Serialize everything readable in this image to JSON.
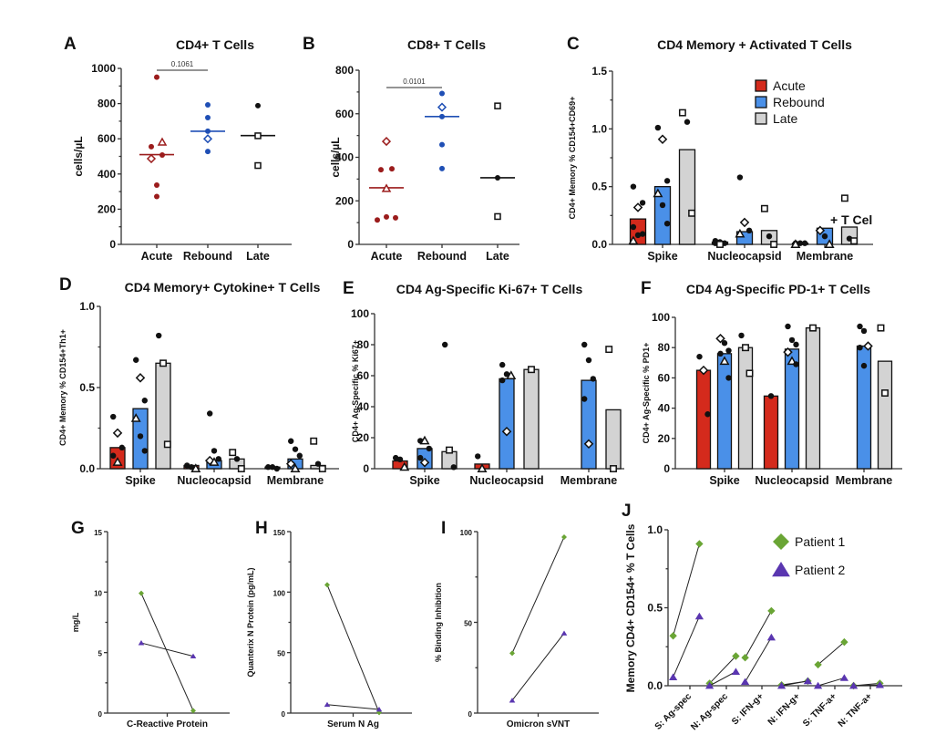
{
  "colors": {
    "acute_dot": "#9b1c1c",
    "rebound_dot": "#1f4fb5",
    "late_dot": "#111111",
    "acute_bar": "#d42a1c",
    "rebound_bar": "#4a90e8",
    "late_bar": "#d3d3d3",
    "patient1": "#6aa535",
    "patient2": "#5a36b0"
  },
  "chart_data": [
    {
      "id": "A",
      "type": "scatter",
      "title": "CD4+ T Cells",
      "ylabel": "cells/µL",
      "ylim": [
        0,
        1000
      ],
      "yticks": [
        0,
        200,
        400,
        600,
        800,
        1000
      ],
      "categories": [
        "Acute",
        "Rebound",
        "Late"
      ],
      "medians": [
        510,
        643,
        618
      ],
      "significance": {
        "from": "Acute",
        "to": "Rebound",
        "label": "0.1061"
      },
      "points": [
        {
          "cat": 0,
          "dx": 0,
          "y": 950,
          "m": "dot"
        },
        {
          "cat": 0,
          "dx": -0.15,
          "y": 555,
          "m": "dot"
        },
        {
          "cat": 0,
          "dx": 0.15,
          "y": 580,
          "m": "triangle"
        },
        {
          "cat": 0,
          "dx": -0.15,
          "y": 487,
          "m": "diamond"
        },
        {
          "cat": 0,
          "dx": 0.15,
          "y": 508,
          "m": "dot"
        },
        {
          "cat": 0,
          "dx": 0,
          "y": 337,
          "m": "dot"
        },
        {
          "cat": 0,
          "dx": 0,
          "y": 272,
          "m": "dot"
        },
        {
          "cat": 1,
          "dx": 0,
          "y": 793,
          "m": "dot"
        },
        {
          "cat": 1,
          "dx": 0,
          "y": 720,
          "m": "dot"
        },
        {
          "cat": 1,
          "dx": 0,
          "y": 643,
          "m": "dot"
        },
        {
          "cat": 1,
          "dx": 0,
          "y": 600,
          "m": "diamond"
        },
        {
          "cat": 1,
          "dx": 0,
          "y": 528,
          "m": "dot"
        },
        {
          "cat": 2,
          "dx": 0,
          "y": 788,
          "m": "dot"
        },
        {
          "cat": 2,
          "dx": 0,
          "y": 617,
          "m": "square"
        },
        {
          "cat": 2,
          "dx": 0,
          "y": 448,
          "m": "square"
        }
      ]
    },
    {
      "id": "B",
      "type": "scatter",
      "title": "CD8+ T Cells",
      "ylabel": "cells/µL",
      "ylim": [
        0,
        800
      ],
      "yticks": [
        0,
        200,
        400,
        600,
        800
      ],
      "categories": [
        "Acute",
        "Rebound",
        "Late"
      ],
      "medians": [
        260,
        587,
        306
      ],
      "significance": {
        "from": "Acute",
        "to": "Rebound",
        "label": "0.0101"
      },
      "points": [
        {
          "cat": 0,
          "dx": 0,
          "y": 473,
          "m": "diamond"
        },
        {
          "cat": 0,
          "dx": -0.15,
          "y": 343,
          "m": "dot"
        },
        {
          "cat": 0,
          "dx": 0.15,
          "y": 347,
          "m": "dot"
        },
        {
          "cat": 0,
          "dx": 0,
          "y": 256,
          "m": "triangle"
        },
        {
          "cat": 0,
          "dx": -0.25,
          "y": 112,
          "m": "dot"
        },
        {
          "cat": 0,
          "dx": 0,
          "y": 126,
          "m": "dot"
        },
        {
          "cat": 0,
          "dx": 0.25,
          "y": 122,
          "m": "dot"
        },
        {
          "cat": 1,
          "dx": 0,
          "y": 693,
          "m": "dot"
        },
        {
          "cat": 1,
          "dx": 0,
          "y": 630,
          "m": "diamond"
        },
        {
          "cat": 1,
          "dx": 0,
          "y": 587,
          "m": "dot"
        },
        {
          "cat": 1,
          "dx": 0,
          "y": 458,
          "m": "dot"
        },
        {
          "cat": 1,
          "dx": 0,
          "y": 348,
          "m": "dot"
        },
        {
          "cat": 2,
          "dx": 0,
          "y": 636,
          "m": "square"
        },
        {
          "cat": 2,
          "dx": 0,
          "y": 306,
          "m": "dot"
        },
        {
          "cat": 2,
          "dx": 0,
          "y": 128,
          "m": "square"
        }
      ]
    },
    {
      "id": "C",
      "type": "bar",
      "title": "CD4 Memory + Activated T Cells",
      "ylabel": "CD4+ Memory % CD154+CD69+",
      "ylim": [
        0,
        1.5
      ],
      "yticks": [
        0.0,
        0.5,
        1.0,
        1.5
      ],
      "ytick_fmt": 1,
      "categories": [
        "Spike",
        "Nucleocapsid",
        "Membrane"
      ],
      "legend": {
        "position": "top-right",
        "entries": [
          "Acute",
          "Rebound",
          "Late"
        ]
      },
      "overlay_text": "+ T Cel",
      "series": [
        {
          "name": "Acute",
          "values": [
            0.22,
            0.02,
            0.01
          ],
          "points": [
            [
              0.5,
              0.32,
              0.36,
              0.15,
              0.08,
              0.09,
              0.03
            ],
            [
              0.03,
              0.02,
              0.01,
              0.01,
              0.0
            ],
            [
              0.01,
              0.01,
              0.01,
              0.0
            ]
          ],
          "markers": [
            [
              "dot",
              "diamond",
              "dot",
              "dot",
              "dot",
              "dot",
              "triangle"
            ],
            [
              "dot",
              "dot",
              "dot",
              "dot",
              "square"
            ],
            [
              "dot",
              "dot",
              "dot",
              "triangle"
            ]
          ]
        },
        {
          "name": "Rebound",
          "values": [
            0.5,
            0.11,
            0.14
          ],
          "points": [
            [
              1.01,
              0.91,
              0.55,
              0.44,
              0.34,
              0.18
            ],
            [
              0.58,
              0.19,
              0.12,
              0.09
            ],
            [
              0.12,
              0.07,
              0.0
            ]
          ],
          "markers": [
            [
              "dot",
              "diamond",
              "dot",
              "triangle",
              "dot",
              "dot"
            ],
            [
              "dot",
              "diamond",
              "dot",
              "triangle"
            ],
            [
              "diamond",
              "dot",
              "triangle"
            ]
          ]
        },
        {
          "name": "Late",
          "values": [
            0.82,
            0.12,
            0.15
          ],
          "points": [
            [
              1.14,
              1.06,
              0.27
            ],
            [
              0.31,
              0.07,
              0.0
            ],
            [
              0.4,
              0.05,
              0.03
            ]
          ],
          "markers": [
            [
              "square",
              "dot",
              "square"
            ],
            [
              "square",
              "dot",
              "square"
            ],
            [
              "square",
              "dot",
              "square"
            ]
          ]
        }
      ]
    },
    {
      "id": "D",
      "type": "bar",
      "title": "CD4 Memory+ Cytokine+ T Cells",
      "ylabel": "CD4+ Memory % CD154+Th1+",
      "ylim": [
        0,
        1.0
      ],
      "yticks": [
        0.0,
        0.5,
        1.0
      ],
      "ytick_fmt": 1,
      "categories": [
        "Spike",
        "Nucleocapsid",
        "Membrane"
      ],
      "series": [
        {
          "name": "Acute",
          "values": [
            0.13,
            0.02,
            0.01
          ],
          "points": [
            [
              0.32,
              0.22,
              0.13,
              0.08,
              0.04
            ],
            [
              0.02,
              0.01,
              0.0
            ],
            [
              0.01,
              0.01,
              0.0
            ]
          ],
          "markers": [
            [
              "dot",
              "diamond",
              "dot",
              "dot",
              "triangle"
            ],
            [
              "dot",
              "dot",
              "triangle"
            ],
            [
              "dot",
              "dot",
              "dot"
            ]
          ]
        },
        {
          "name": "Rebound",
          "values": [
            0.37,
            0.05,
            0.06
          ],
          "points": [
            [
              0.67,
              0.56,
              0.42,
              0.31,
              0.2,
              0.11
            ],
            [
              0.34,
              0.11,
              0.06,
              0.05,
              0.04
            ],
            [
              0.17,
              0.12,
              0.08,
              0.03,
              0.0
            ]
          ],
          "markers": [
            [
              "dot",
              "diamond",
              "dot",
              "triangle",
              "dot",
              "dot"
            ],
            [
              "dot",
              "dot",
              "dot",
              "diamond",
              "triangle"
            ],
            [
              "dot",
              "dot",
              "dot",
              "diamond",
              "triangle"
            ]
          ]
        },
        {
          "name": "Late",
          "values": [
            0.65,
            0.06,
            0.02
          ],
          "points": [
            [
              0.82,
              0.65,
              0.15
            ],
            [
              0.1,
              0.06,
              0.0
            ],
            [
              0.17,
              0.03,
              0.0
            ]
          ],
          "markers": [
            [
              "dot",
              "square",
              "square"
            ],
            [
              "square",
              "dot",
              "square"
            ],
            [
              "square",
              "dot",
              "square"
            ]
          ]
        }
      ]
    },
    {
      "id": "E",
      "type": "bar",
      "title": "CD4 Ag-Specific Ki-67+ T Cells",
      "ylabel": "CD4+ Ag-Specific % Ki67+",
      "ylim": [
        0,
        100
      ],
      "yticks": [
        0,
        20,
        40,
        60,
        80,
        100
      ],
      "ytick_fmt": 0,
      "categories": [
        "Spike",
        "Nucleocapsid",
        "Membrane"
      ],
      "series": [
        {
          "name": "Acute",
          "values": [
            5,
            3,
            null
          ],
          "points": [
            [
              7,
              6,
              1
            ],
            [
              8,
              0
            ],
            []
          ],
          "markers": [
            [
              "dot",
              "dot",
              "triangle"
            ],
            [
              "dot",
              "triangle"
            ],
            []
          ]
        },
        {
          "name": "Rebound",
          "values": [
            13,
            58,
            57
          ],
          "points": [
            [
              18,
              18,
              13,
              7,
              4
            ],
            [
              67,
              61,
              60,
              57,
              24
            ],
            [
              80,
              70,
              58,
              45,
              16
            ]
          ],
          "markers": [
            [
              "dot",
              "triangle",
              "dot",
              "dot",
              "diamond"
            ],
            [
              "dot",
              "dot",
              "triangle",
              "dot",
              "diamond"
            ],
            [
              "dot",
              "dot",
              "dot",
              "dot",
              "diamond"
            ]
          ]
        },
        {
          "name": "Late",
          "values": [
            11,
            64,
            38
          ],
          "points": [
            [
              80,
              12,
              1
            ],
            [
              64
            ],
            [
              77,
              0
            ]
          ],
          "markers": [
            [
              "dot",
              "square",
              "dot"
            ],
            [
              "square"
            ],
            [
              "square",
              "square"
            ]
          ]
        }
      ]
    },
    {
      "id": "F",
      "type": "bar",
      "title": "CD4 Ag-Specific PD-1+ T Cells",
      "ylabel": "CD4+ Ag-Specific % PD1+",
      "ylim": [
        0,
        100
      ],
      "yticks": [
        0,
        20,
        40,
        60,
        80,
        100
      ],
      "ytick_fmt": 0,
      "categories": [
        "Spike",
        "Nucleocapsid",
        "Membrane"
      ],
      "series": [
        {
          "name": "Acute",
          "values": [
            65,
            48,
            null
          ],
          "points": [
            [
              74,
              65,
              36
            ],
            [
              48
            ],
            []
          ],
          "markers": [
            [
              "dot",
              "diamond",
              "dot"
            ],
            [
              "dot"
            ],
            []
          ]
        },
        {
          "name": "Rebound",
          "values": [
            76,
            79,
            81
          ],
          "points": [
            [
              86,
              83,
              78,
              76,
              71,
              60
            ],
            [
              94,
              85,
              82,
              77,
              71,
              69
            ],
            [
              94,
              91,
              81,
              80,
              68
            ]
          ],
          "markers": [
            [
              "diamond",
              "dot",
              "dot",
              "dot",
              "triangle",
              "dot"
            ],
            [
              "dot",
              "dot",
              "dot",
              "diamond",
              "triangle",
              "dot"
            ],
            [
              "dot",
              "dot",
              "diamond",
              "dot",
              "dot"
            ]
          ]
        },
        {
          "name": "Late",
          "values": [
            80,
            93,
            71
          ],
          "points": [
            [
              88,
              80,
              63
            ],
            [
              93
            ],
            [
              93,
              50
            ]
          ],
          "markers": [
            [
              "dot",
              "square",
              "square"
            ],
            [
              "square"
            ],
            [
              "square",
              "square"
            ]
          ]
        }
      ]
    },
    {
      "id": "G",
      "type": "line",
      "title": "",
      "ylabel": "mg/L",
      "xlabel": "C-Reactive Protein",
      "ylim": [
        0,
        15
      ],
      "yticks": [
        0,
        5,
        10,
        15
      ],
      "series": [
        {
          "name": "Patient 1",
          "marker": "diamond",
          "values": [
            9.9,
            0.2
          ]
        },
        {
          "name": "Patient 2",
          "marker": "triangle",
          "values": [
            5.8,
            4.7
          ]
        }
      ]
    },
    {
      "id": "H",
      "type": "line",
      "title": "",
      "ylabel": "Quanterix N Protein (pg/mL)",
      "xlabel": "Serum N Ag",
      "ylim": [
        0,
        150
      ],
      "yticks": [
        0,
        50,
        100,
        150
      ],
      "series": [
        {
          "name": "Patient 1",
          "marker": "diamond",
          "values": [
            106,
            0.5
          ]
        },
        {
          "name": "Patient 2",
          "marker": "triangle",
          "values": [
            7,
            3
          ]
        }
      ]
    },
    {
      "id": "I",
      "type": "line",
      "title": "",
      "ylabel": "% Binding Inhibition",
      "xlabel": "Omicron sVNT",
      "ylim": [
        0,
        100
      ],
      "yticks": [
        0,
        50,
        100
      ],
      "series": [
        {
          "name": "Patient 1",
          "marker": "diamond",
          "values": [
            33,
            97
          ]
        },
        {
          "name": "Patient 2",
          "marker": "triangle",
          "values": [
            7,
            44
          ]
        }
      ]
    },
    {
      "id": "J",
      "type": "line",
      "title": "",
      "ylabel": "Memory CD4+ CD154+ % T Cells",
      "ylim": [
        0,
        1.0
      ],
      "yticks": [
        0.0,
        0.5,
        1.0
      ],
      "categories": [
        "S: Ag-spec",
        "N: Ag-spec",
        "S: IFN-g+",
        "N: IFN-g+",
        "S: TNF-a+",
        "N: TNF-a+"
      ],
      "legend": {
        "position": "top-right",
        "entries": [
          "Patient 1",
          "Patient 2"
        ]
      },
      "series": [
        {
          "name": "Patient 1",
          "marker": "diamond",
          "pairs": [
            [
              0.32,
              0.91
            ],
            [
              0.015,
              0.19
            ],
            [
              0.18,
              0.48
            ],
            [
              0.005,
              0.03
            ],
            [
              0.135,
              0.28
            ],
            [
              0.0,
              0.015
            ]
          ]
        },
        {
          "name": "Patient 2",
          "marker": "triangle",
          "pairs": [
            [
              0.055,
              0.445
            ],
            [
              0.0,
              0.09
            ],
            [
              0.025,
              0.31
            ],
            [
              0.0,
              0.03
            ],
            [
              0.0,
              0.05
            ],
            [
              0.0,
              0.005
            ]
          ]
        }
      ]
    }
  ]
}
